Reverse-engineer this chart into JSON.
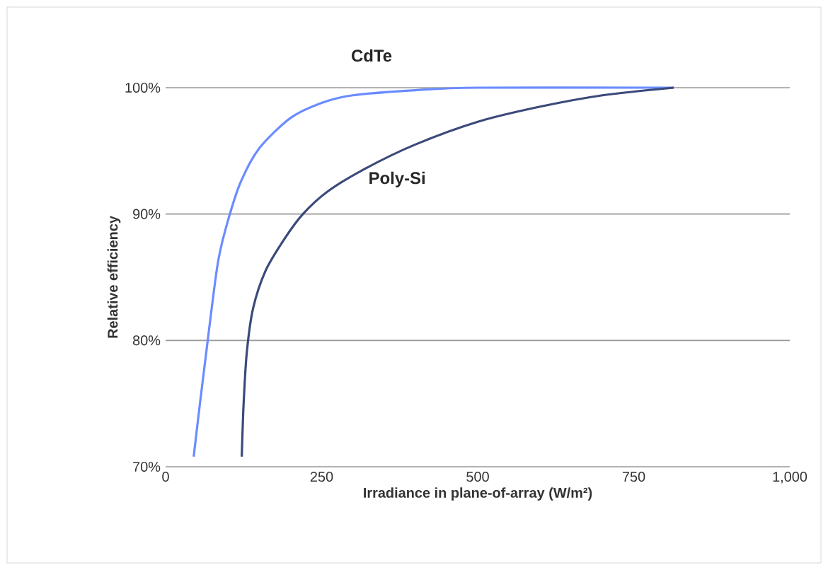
{
  "chart_data": {
    "type": "line",
    "xlabel": "Irradiance in plane-of-array (W/m²)",
    "ylabel": "Relative efficiency",
    "xlim": [
      0,
      1000
    ],
    "ylim": [
      70,
      100
    ],
    "xticks": [
      0,
      250,
      500,
      750,
      {
        "value": 1000,
        "label": "1,000"
      }
    ],
    "yticks": [
      {
        "value": 70,
        "label": "70%"
      },
      {
        "value": 80,
        "label": "80%"
      },
      {
        "value": 90,
        "label": "90%"
      },
      {
        "value": 100,
        "label": "100%"
      }
    ],
    "grid": "y",
    "marker": "none",
    "line_style": "solid",
    "series": [
      {
        "name": "CdTe",
        "color": "#6b8cff",
        "x": [
          45,
          55,
          65,
          75,
          85,
          100,
          120,
          150,
          200,
          250,
          300,
          400,
          500,
          814
        ],
        "values": [
          70.8,
          75,
          79,
          83,
          86.5,
          89.5,
          92.5,
          95.2,
          97.6,
          98.8,
          99.4,
          99.8,
          100,
          100
        ]
      },
      {
        "name": "Poly-Si",
        "color": "#3b4a7a",
        "x": [
          122,
          125,
          130,
          140,
          160,
          190,
          220,
          260,
          320,
          400,
          500,
          600,
          700,
          814
        ],
        "values": [
          70.8,
          75,
          79,
          82.5,
          85.5,
          88,
          90,
          91.8,
          93.6,
          95.5,
          97.3,
          98.5,
          99.4,
          100
        ]
      }
    ]
  }
}
